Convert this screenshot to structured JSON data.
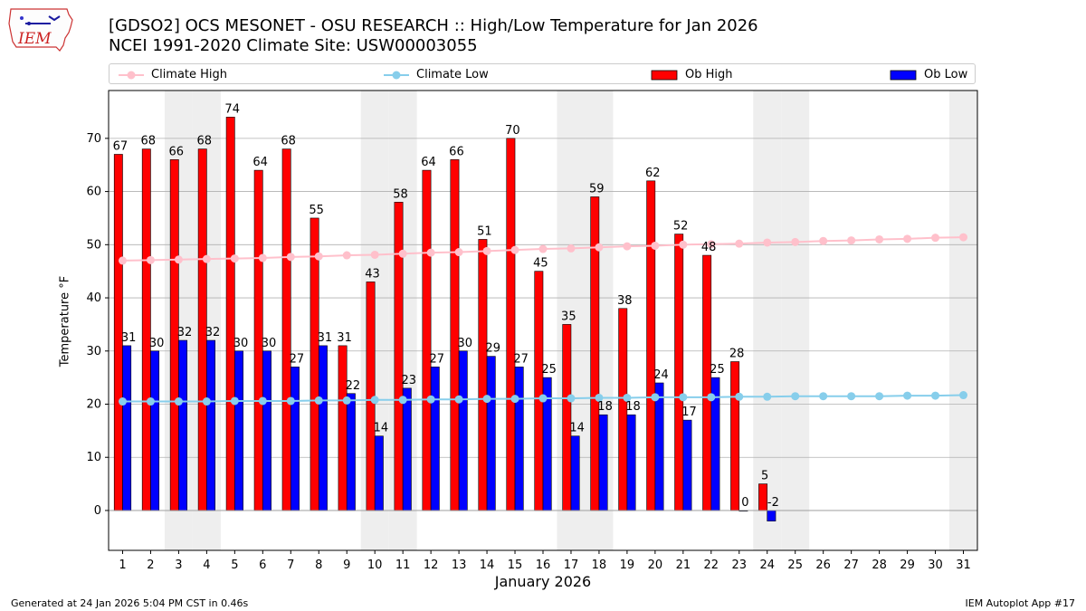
{
  "header": {
    "title_line1": "[GDSO2] OCS MESONET - OSU RESEARCH :: High/Low Temperature for Jan 2026",
    "title_line2": "NCEI 1991-2020 Climate Site: USW00003055",
    "logo_text": "IEM"
  },
  "legend": {
    "climate_high": "Climate High",
    "climate_low": "Climate Low",
    "ob_high": "Ob High",
    "ob_low": "Ob Low"
  },
  "footer": {
    "generated": "Generated at 24 Jan 2026 5:04 PM CST in 0.46s",
    "app": "IEM Autoplot App #17"
  },
  "colors": {
    "ob_high": "#ff0000",
    "ob_low": "#0000ff",
    "climate_high": "#ffc0cb",
    "climate_low": "#87ceeb",
    "weekend_shade": "#eeeeee",
    "grid": "#b0b0b0"
  },
  "chart_data": {
    "type": "bar",
    "xlabel": "January 2026",
    "ylabel": "Temperature °F",
    "ylim": [
      -7.5,
      79
    ],
    "yticks": [
      0,
      10,
      20,
      30,
      40,
      50,
      60,
      70
    ],
    "grid": "horizontal",
    "legend_position": "top",
    "categories": [
      "1",
      "2",
      "3",
      "4",
      "5",
      "6",
      "7",
      "8",
      "9",
      "10",
      "11",
      "12",
      "13",
      "14",
      "15",
      "16",
      "17",
      "18",
      "19",
      "20",
      "21",
      "22",
      "23",
      "24",
      "25",
      "26",
      "27",
      "28",
      "29",
      "30",
      "31"
    ],
    "weekend_days": [
      3,
      4,
      10,
      11,
      17,
      18,
      24,
      25,
      31
    ],
    "series": [
      {
        "name": "Ob High",
        "kind": "bar",
        "color": "#ff0000",
        "values": [
          67,
          68,
          66,
          68,
          74,
          64,
          68,
          55,
          31,
          43,
          58,
          64,
          66,
          51,
          70,
          45,
          35,
          59,
          38,
          62,
          52,
          48,
          28,
          5,
          null,
          null,
          null,
          null,
          null,
          null,
          null
        ]
      },
      {
        "name": "Ob Low",
        "kind": "bar",
        "color": "#0000ff",
        "values": [
          31,
          30,
          32,
          32,
          30,
          30,
          27,
          31,
          22,
          14,
          23,
          27,
          30,
          29,
          27,
          25,
          14,
          18,
          18,
          24,
          17,
          25,
          0,
          -2,
          null,
          null,
          null,
          null,
          null,
          null,
          null
        ]
      },
      {
        "name": "Climate High",
        "kind": "line",
        "color": "#ffc0cb",
        "values": [
          47.0,
          47.1,
          47.2,
          47.3,
          47.4,
          47.5,
          47.7,
          47.8,
          48.0,
          48.1,
          48.3,
          48.5,
          48.6,
          48.8,
          49.0,
          49.2,
          49.3,
          49.5,
          49.7,
          49.8,
          50.0,
          50.1,
          50.2,
          50.4,
          50.5,
          50.7,
          50.8,
          51.0,
          51.1,
          51.3,
          51.4
        ]
      },
      {
        "name": "Climate Low",
        "kind": "line",
        "color": "#87ceeb",
        "values": [
          20.5,
          20.5,
          20.5,
          20.5,
          20.6,
          20.6,
          20.6,
          20.7,
          20.7,
          20.8,
          20.8,
          20.9,
          20.9,
          21.0,
          21.0,
          21.1,
          21.1,
          21.2,
          21.2,
          21.3,
          21.3,
          21.3,
          21.4,
          21.4,
          21.5,
          21.5,
          21.5,
          21.5,
          21.6,
          21.6,
          21.7
        ]
      }
    ],
    "data_labels_high": [
      "67",
      "68",
      "66",
      "68",
      "74",
      "64",
      "68",
      "55",
      "31",
      "43",
      "58",
      "64",
      "66",
      "51",
      "70",
      "45",
      "35",
      "59",
      "38",
      "62",
      "52",
      "48",
      "28",
      "5"
    ],
    "data_labels_low": [
      "31",
      "30",
      "32",
      "32",
      "30",
      "30",
      "27",
      "31",
      "22",
      "14",
      "23",
      "27",
      "30",
      "29",
      "27",
      "25",
      "14",
      "18",
      "18",
      "24",
      "17",
      "25",
      "0",
      "-2"
    ]
  }
}
